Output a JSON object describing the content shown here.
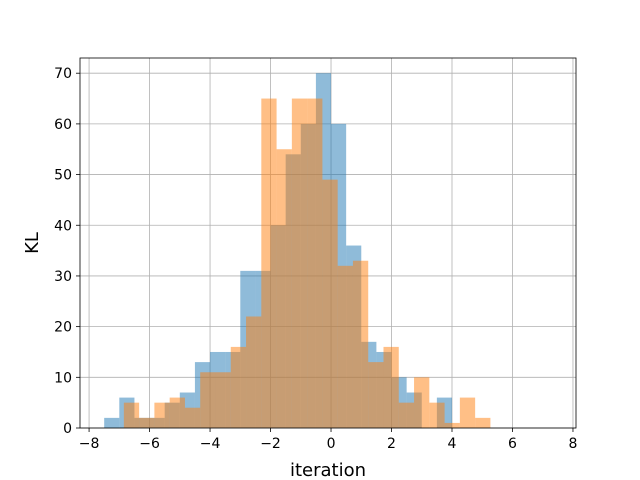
{
  "chart_data": {
    "type": "histogram",
    "title": "",
    "xlabel": "iteration",
    "ylabel": "KL",
    "xlim": [
      -8.3,
      8.1
    ],
    "ylim": [
      0,
      73
    ],
    "grid": true,
    "xticks": [
      -8,
      -6,
      -4,
      -2,
      0,
      2,
      4,
      6,
      8
    ],
    "yticks": [
      0,
      10,
      20,
      30,
      40,
      50,
      60,
      70
    ],
    "series": [
      {
        "color": "#1f77b4",
        "opacity": 0.5,
        "bin_start": -7.5,
        "bin_width": 0.5,
        "counts": [
          2,
          6,
          2,
          2,
          5,
          7,
          13,
          15,
          15,
          31,
          31,
          40,
          54,
          60,
          70,
          60,
          36,
          17,
          15,
          10,
          7,
          0,
          6,
          0
        ]
      },
      {
        "color": "#ff7f0e",
        "opacity": 0.5,
        "bin_start": -6.85,
        "bin_width": 0.505,
        "counts": [
          5,
          2,
          5,
          6,
          4,
          11,
          11,
          16,
          22,
          65,
          55,
          65,
          65,
          49,
          32,
          33,
          13,
          16,
          5,
          10,
          5,
          1,
          6,
          2
        ]
      }
    ]
  }
}
